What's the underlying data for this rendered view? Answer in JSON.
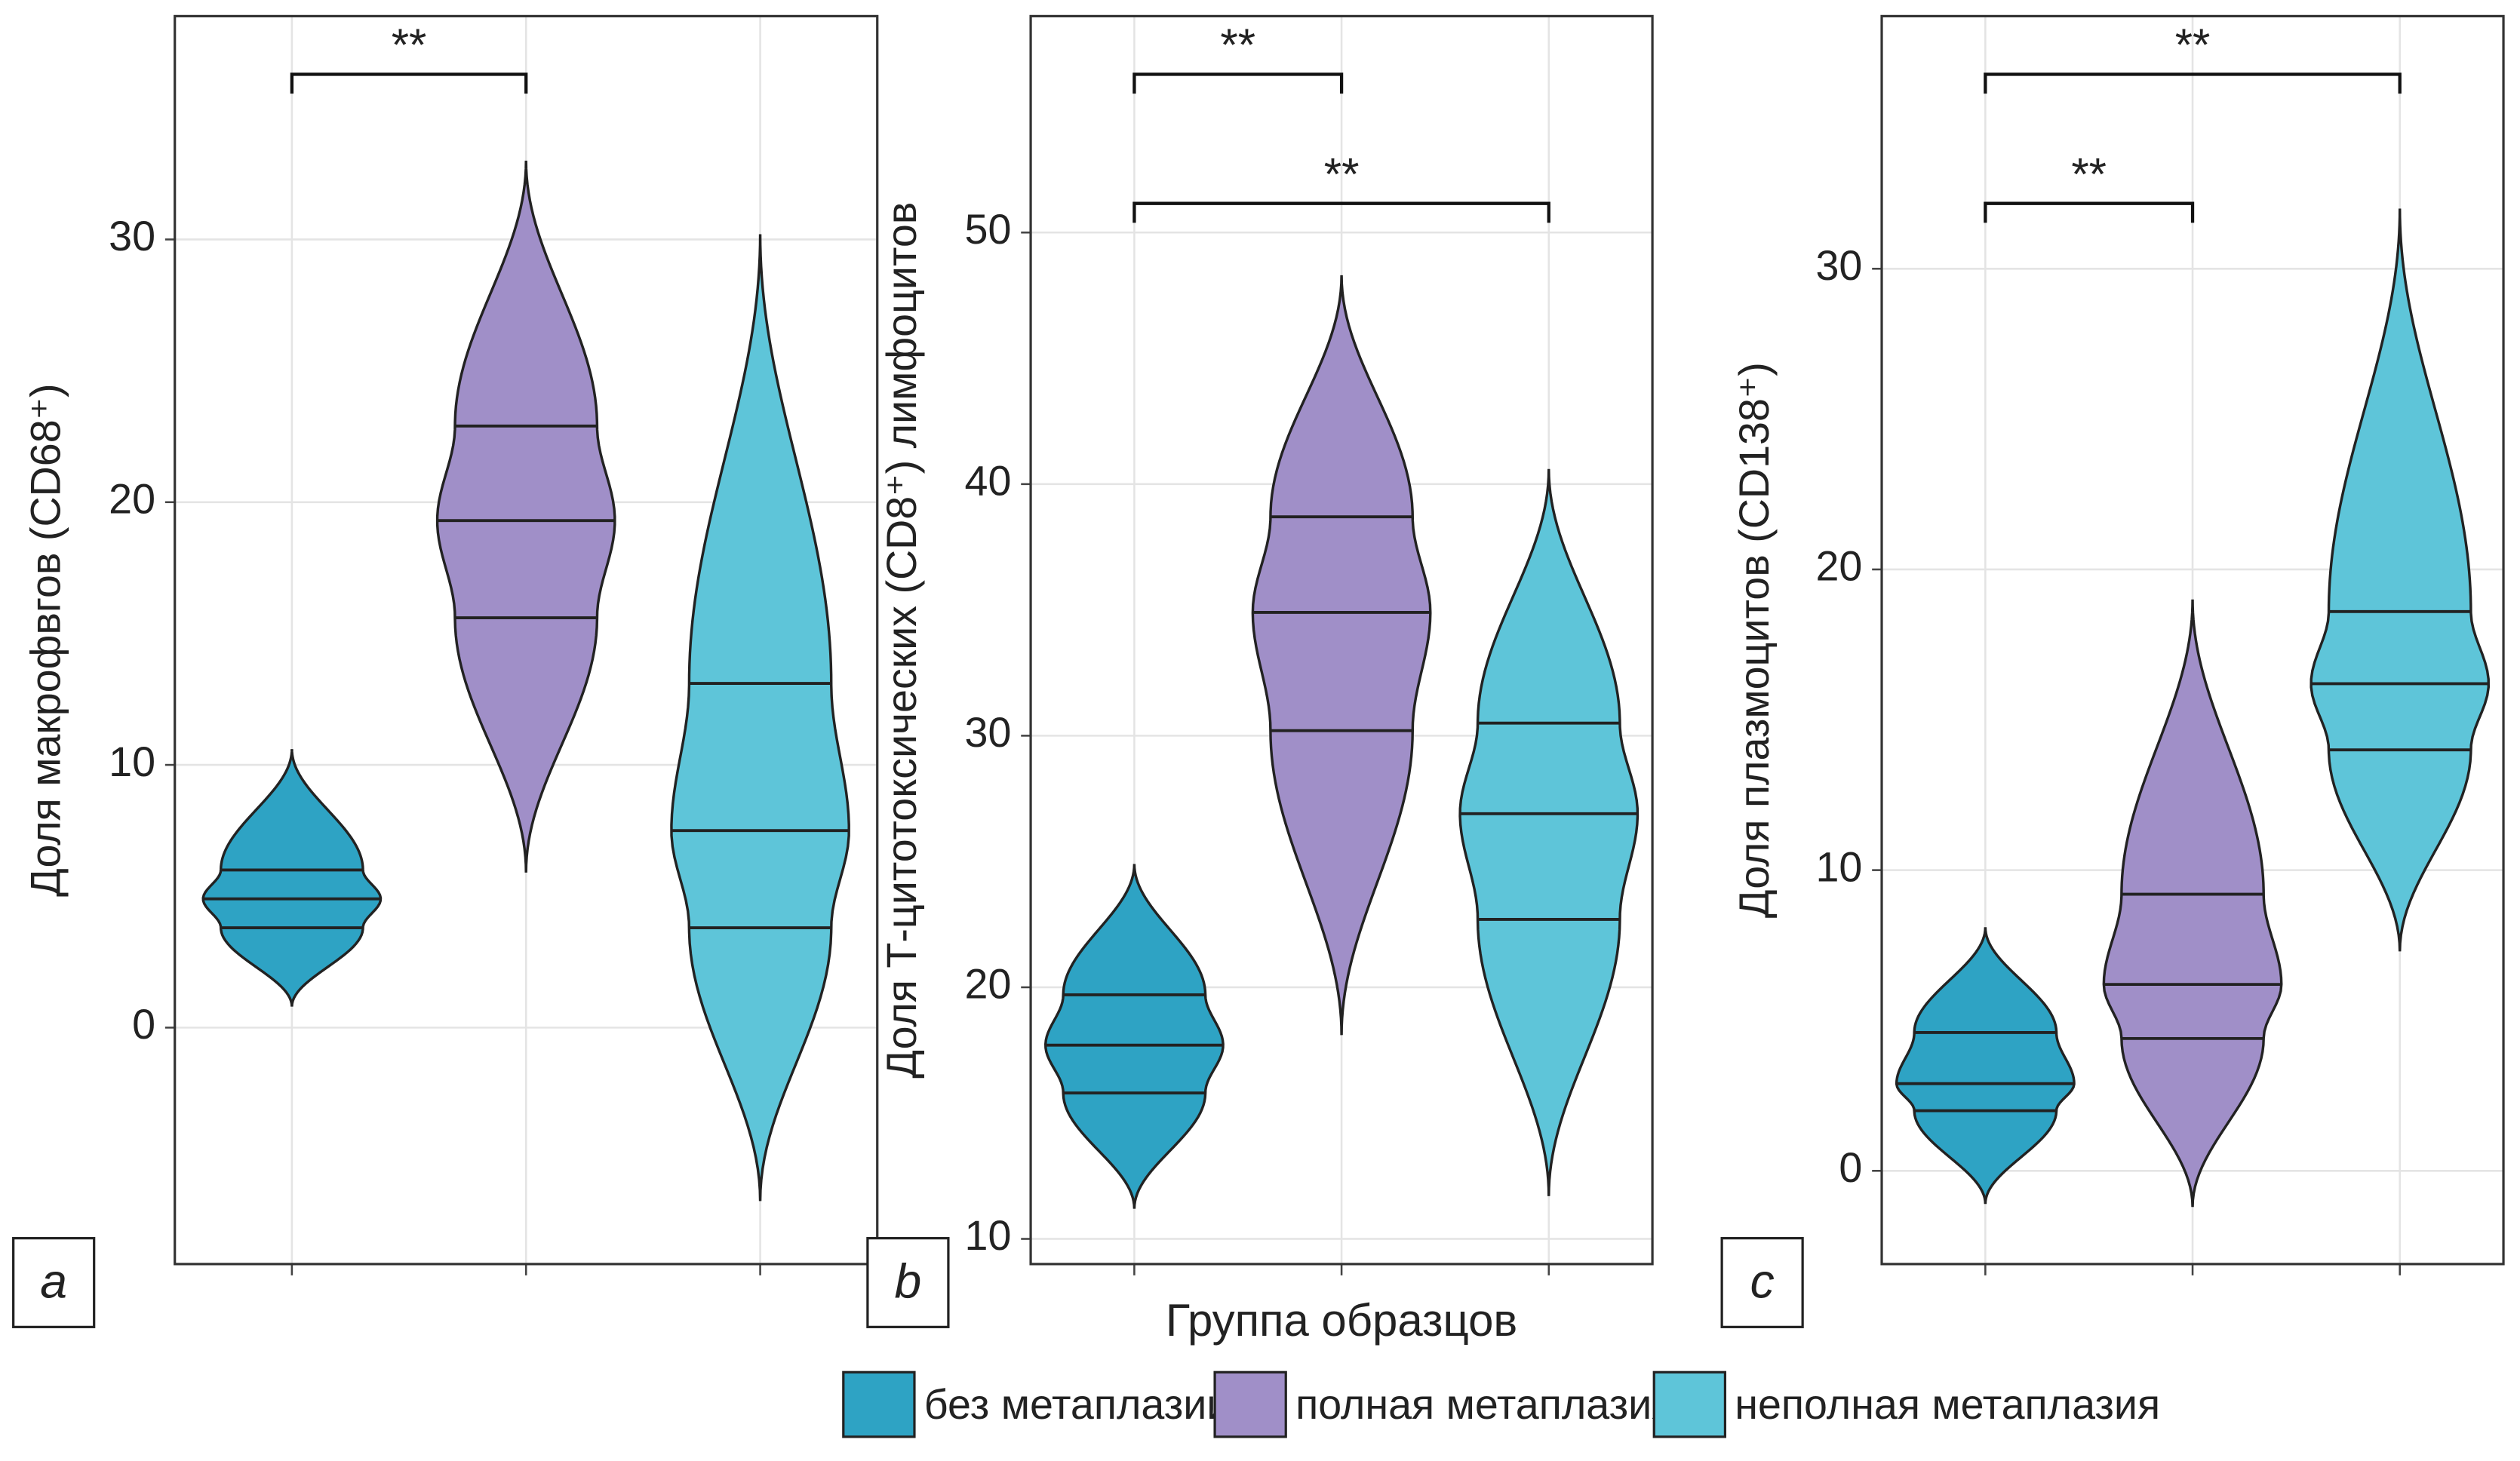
{
  "chart_data": [
    {
      "type": "violin",
      "ylabel": "Доля макрофвгов (CD68⁺)",
      "panel_label": "a",
      "ylim": [
        -9,
        38.5
      ],
      "yticks": [
        0,
        10,
        20,
        30
      ],
      "groups": [
        {
          "min": 0.8,
          "q1": 3.8,
          "median": 4.9,
          "q3": 6.0,
          "max": 10.6
        },
        {
          "min": 5.9,
          "q1": 15.6,
          "median": 19.3,
          "q3": 22.9,
          "max": 33
        },
        {
          "min": -6.6,
          "q1": 3.8,
          "median": 7.5,
          "q3": 13.1,
          "max": 30.2
        }
      ],
      "brackets": [
        {
          "label": "**",
          "groups": [
            0,
            1
          ]
        }
      ]
    },
    {
      "type": "violin",
      "ylabel": "Доля Т-цитотоксических (CD8⁺) лимфоцитов",
      "panel_label": "b",
      "xlabel": "Группа образцов",
      "ylim": [
        9,
        58.6
      ],
      "yticks": [
        10,
        20,
        30,
        40,
        50
      ],
      "groups": [
        {
          "min": 11.2,
          "q1": 15.8,
          "median": 17.7,
          "q3": 19.7,
          "max": 24.9
        },
        {
          "min": 18.1,
          "q1": 30.2,
          "median": 34.9,
          "q3": 38.7,
          "max": 48.3
        },
        {
          "min": 11.7,
          "q1": 22.7,
          "median": 26.9,
          "q3": 30.5,
          "max": 40.6
        }
      ],
      "brackets": [
        {
          "label": "**",
          "groups": [
            0,
            1
          ]
        },
        {
          "label": "**",
          "groups": [
            0,
            2
          ]
        }
      ]
    },
    {
      "type": "violin",
      "ylabel": "Доля плазмоцитов (CD138⁺)",
      "panel_label": "c",
      "ylim": [
        -3.1,
        38.4
      ],
      "yticks": [
        0,
        10,
        20,
        30
      ],
      "groups": [
        {
          "min": -1.1,
          "q1": 2.0,
          "median": 2.9,
          "q3": 4.6,
          "max": 8.1
        },
        {
          "min": -1.2,
          "q1": 4.4,
          "median": 6.2,
          "q3": 9.2,
          "max": 19.0
        },
        {
          "min": 7.3,
          "q1": 14.0,
          "median": 16.2,
          "q3": 18.6,
          "max": 32.0
        }
      ],
      "brackets": [
        {
          "label": "**",
          "groups": [
            0,
            2
          ]
        },
        {
          "label": "**",
          "groups": [
            0,
            1
          ]
        }
      ]
    }
  ],
  "legend": [
    {
      "name": "без метаплазии",
      "color": "#2ea3c4"
    },
    {
      "name": "полная метаплазия",
      "color": "#a08fc8"
    },
    {
      "name": "неполная метаплазия",
      "color": "#5ec5d9"
    }
  ]
}
